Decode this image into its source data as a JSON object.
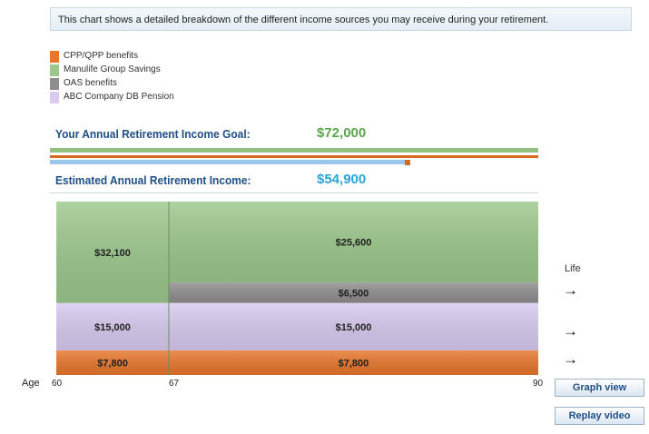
{
  "intro_text": "This chart shows a detailed breakdown of the different income sources you may receive during  your retirement.",
  "legend": [
    {
      "label": "CPP/QPP benefits",
      "color": "#e8762c"
    },
    {
      "label": "Manulife Group Savings",
      "color": "#9cc88c"
    },
    {
      "label": "OAS benefits",
      "color": "#8e8e8e"
    },
    {
      "label": "ABC Company DB Pension",
      "color": "#d8caf0"
    }
  ],
  "goal": {
    "label": "Your Annual Retirement Income Goal:",
    "value": "$72,000"
  },
  "estimate": {
    "label": "Estimated Annual Retirement Income:",
    "value": "$54,900"
  },
  "side_label": "Life",
  "side_arrows": [
    "→",
    "→",
    "→"
  ],
  "buttons": {
    "graph_view": "Graph view",
    "replay_video": "Replay video"
  },
  "chart_data": {
    "type": "area",
    "title": "",
    "xlabel": "Age",
    "x_ticks": [
      60,
      67,
      90
    ],
    "series": [
      {
        "name": "CPP/QPP benefits",
        "color": "#e8762c",
        "segments": [
          {
            "from": 60,
            "to": 67,
            "value": 7800,
            "label": "$7,800"
          },
          {
            "from": 67,
            "to": 90,
            "value": 7800,
            "label": "$7,800"
          }
        ]
      },
      {
        "name": "ABC Company DB Pension",
        "color": "#d8caf0",
        "segments": [
          {
            "from": 60,
            "to": 67,
            "value": 15000,
            "label": "$15,000"
          },
          {
            "from": 67,
            "to": 90,
            "value": 15000,
            "label": "$15,000"
          }
        ]
      },
      {
        "name": "OAS benefits",
        "color": "#8e8e8e",
        "segments": [
          {
            "from": 67,
            "to": 90,
            "value": 6500,
            "label": "$6,500"
          }
        ]
      },
      {
        "name": "Manulife Group Savings",
        "color": "#9cc88c",
        "segments": [
          {
            "from": 60,
            "to": 67,
            "value": 32100,
            "label": "$32,100"
          },
          {
            "from": 67,
            "to": 90,
            "value": 25600,
            "label": "$25,600"
          }
        ]
      }
    ]
  }
}
